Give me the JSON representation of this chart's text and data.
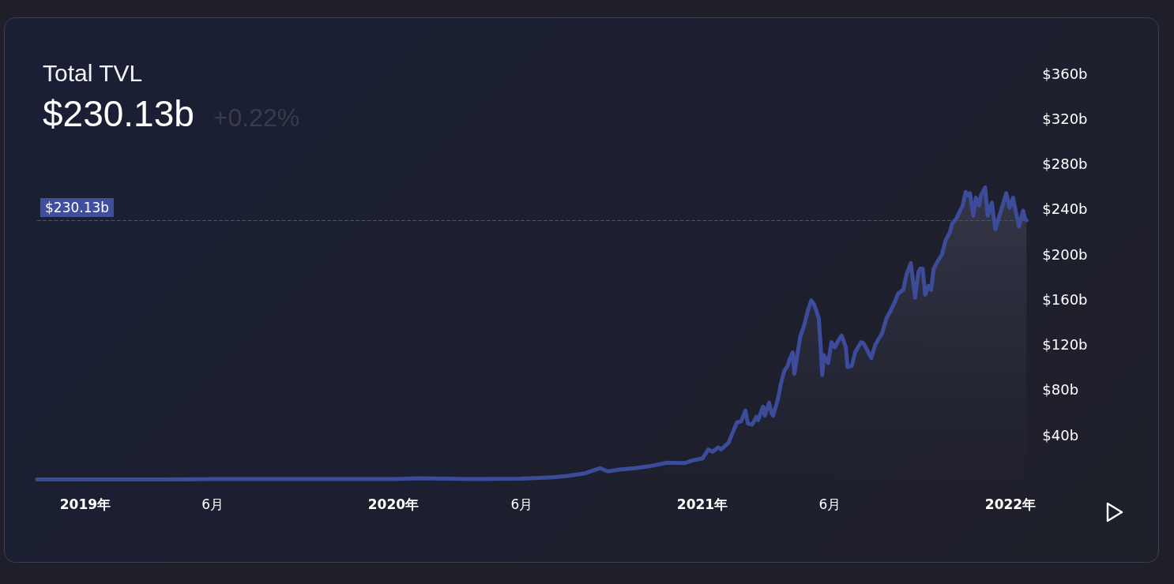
{
  "chart_data": {
    "type": "area",
    "title": "Total TVL",
    "subtitle": "$230.13b",
    "annotations": [
      "+0.22%"
    ],
    "x": [
      "2018-11-05",
      "2019-01-01",
      "2019-03-28",
      "2019-06-01",
      "2019-08-16",
      "2019-10-29",
      "2020-01-01",
      "2020-01-29",
      "2020-02-28",
      "2020-04-06",
      "2020-06-01",
      "2020-07-08",
      "2020-07-24",
      "2020-08-15",
      "2020-09-02",
      "2020-09-11",
      "2020-09-27",
      "2020-10-13",
      "2020-10-29",
      "2020-11-20",
      "2020-12-11",
      "2020-12-21",
      "2021-01-01",
      "2021-01-08",
      "2021-01-13",
      "2021-01-20",
      "2021-01-23",
      "2021-02-01",
      "2021-02-06",
      "2021-02-11",
      "2021-02-16",
      "2021-02-21",
      "2021-02-24",
      "2021-03-01",
      "2021-03-06",
      "2021-03-08",
      "2021-03-14",
      "2021-03-16",
      "2021-03-21",
      "2021-03-24",
      "2021-03-26",
      "2021-04-01",
      "2021-04-04",
      "2021-04-08",
      "2021-04-12",
      "2021-04-14",
      "2021-04-18",
      "2021-04-20",
      "2021-04-22",
      "2021-04-27",
      "2021-05-02",
      "2021-05-06",
      "2021-05-10",
      "2021-05-13",
      "2021-05-16",
      "2021-05-19",
      "2021-05-21",
      "2021-05-23",
      "2021-05-25",
      "2021-05-30",
      "2021-06-03",
      "2021-06-07",
      "2021-06-10",
      "2021-06-15",
      "2021-06-20",
      "2021-06-22",
      "2021-06-27",
      "2021-07-01",
      "2021-07-08",
      "2021-07-11",
      "2021-07-16",
      "2021-07-20",
      "2021-07-25",
      "2021-08-02",
      "2021-08-07",
      "2021-08-12",
      "2021-08-16",
      "2021-08-21",
      "2021-08-27",
      "2021-08-31",
      "2021-09-05",
      "2021-09-10",
      "2021-09-14",
      "2021-09-16",
      "2021-09-19",
      "2021-09-22",
      "2021-09-26",
      "2021-09-29",
      "2021-10-02",
      "2021-10-07",
      "2021-10-12",
      "2021-10-16",
      "2021-10-21",
      "2021-10-24",
      "2021-10-29",
      "2021-11-02",
      "2021-11-05",
      "2021-11-09",
      "2021-11-12",
      "2021-11-14",
      "2021-11-18",
      "2021-11-21",
      "2021-11-25",
      "2021-11-27",
      "2021-12-02",
      "2021-12-05",
      "2021-12-10",
      "2021-12-14",
      "2021-12-19",
      "2021-12-27",
      "2021-12-31",
      "2022-01-04",
      "2022-01-11",
      "2022-01-16",
      "2022-01-18",
      "2022-01-20"
    ],
    "values": [
      0.5,
      0.5,
      0.6,
      0.8,
      0.9,
      0.8,
      0.8,
      1.5,
      1.2,
      0.9,
      1.2,
      2.5,
      3.5,
      6,
      10.5,
      7.7,
      9.4,
      10.5,
      12,
      15.4,
      15,
      17.5,
      19,
      27,
      25,
      29,
      27,
      33,
      42,
      51,
      52,
      61.5,
      50,
      49,
      56,
      53,
      65,
      57,
      68.5,
      59,
      57,
      73,
      85,
      96.5,
      101,
      106,
      113,
      94,
      103.5,
      127,
      138,
      150,
      159,
      156,
      150,
      143,
      120,
      93,
      110.5,
      103.5,
      122,
      117.5,
      122,
      128,
      117.5,
      100,
      101,
      113,
      122,
      121,
      114,
      108,
      120,
      130,
      143,
      150,
      156,
      165,
      168.5,
      182.5,
      192,
      161.5,
      184,
      187,
      187,
      164,
      172,
      168.5,
      187,
      194,
      200,
      212,
      219,
      227,
      231.5,
      238,
      242,
      255,
      252,
      254,
      234,
      250,
      243,
      252,
      259,
      234,
      245.5,
      222,
      234,
      254,
      241,
      250,
      224.5,
      238.5,
      231.5,
      230
    ],
    "color": "#3c4c9b",
    "marker": "none",
    "xlim": [
      "2018-11-05",
      "2022-01-20"
    ],
    "xticks": [
      {
        "value": "2019-01-01",
        "label": "2019年"
      },
      {
        "value": "2019-06-01",
        "label": "6月"
      },
      {
        "value": "2020-01-01",
        "label": "2020年"
      },
      {
        "value": "2020-06-01",
        "label": "6月"
      },
      {
        "value": "2021-01-01",
        "label": "2021年"
      },
      {
        "value": "2021-06-01",
        "label": "6月"
      },
      {
        "value": "2022-01-01",
        "label": "2022年"
      }
    ],
    "ylim": [
      0,
      360
    ],
    "yticks": [
      {
        "value": 40,
        "label": "$40b"
      },
      {
        "value": 80,
        "label": "$80b"
      },
      {
        "value": 120,
        "label": "$120b"
      },
      {
        "value": 160,
        "label": "$160b"
      },
      {
        "value": 200,
        "label": "$200b"
      },
      {
        "value": 240,
        "label": "$240b"
      },
      {
        "value": 280,
        "label": "$280b"
      },
      {
        "value": 320,
        "label": "$320b"
      },
      {
        "value": 360,
        "label": "$360b"
      }
    ],
    "ref_lines": [
      {
        "axis": "y",
        "value": 230.13,
        "label": "$230.13b",
        "color": "#3e4f9e",
        "line_style": "dashed"
      }
    ]
  }
}
